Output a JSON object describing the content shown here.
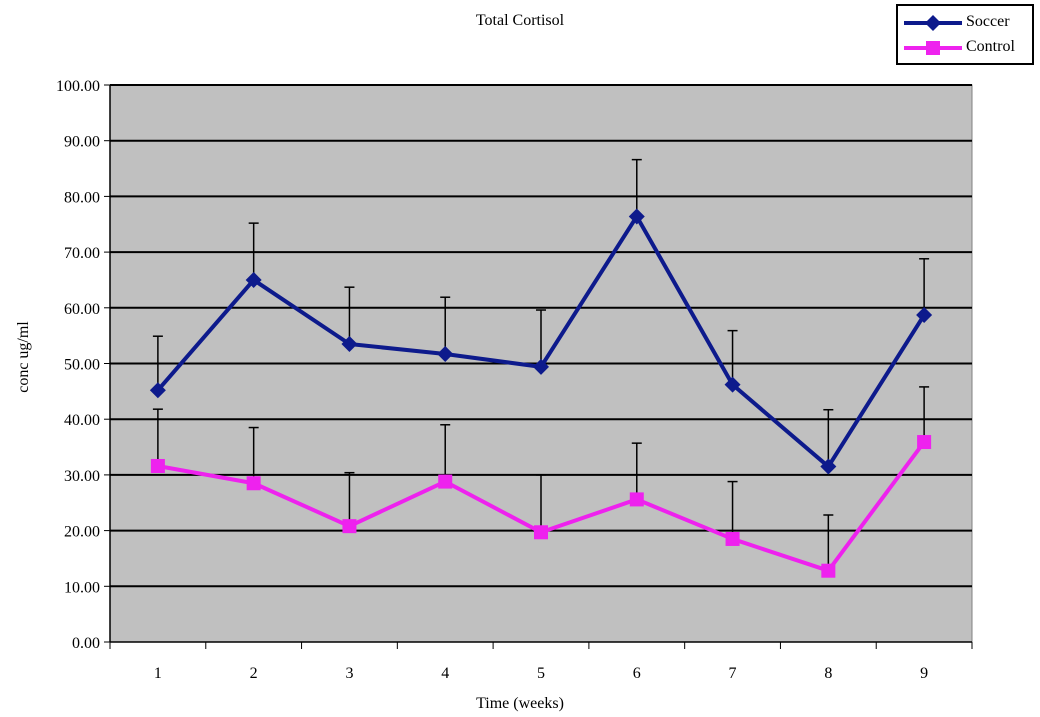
{
  "chart_data": {
    "type": "line",
    "title": "Total Cortisol",
    "xlabel": "Time (weeks)",
    "ylabel": "conc ug/ml",
    "categories": [
      "1",
      "2",
      "3",
      "4",
      "5",
      "6",
      "7",
      "8",
      "9"
    ],
    "ylim": [
      0,
      100
    ],
    "yticks": [
      "0.00",
      "10.00",
      "20.00",
      "30.00",
      "40.00",
      "50.00",
      "60.00",
      "70.00",
      "80.00",
      "90.00",
      "100.00"
    ],
    "grid": true,
    "legend_position": "top-right",
    "series": [
      {
        "name": "Soccer",
        "marker": "diamond",
        "color": "#0d1a8c",
        "values": [
          45.2,
          65.0,
          53.5,
          51.7,
          49.4,
          76.4,
          46.2,
          31.5,
          58.7
        ],
        "error_upper": [
          54.9,
          75.2,
          63.7,
          61.9,
          59.6,
          86.6,
          55.9,
          41.7,
          68.8
        ]
      },
      {
        "name": "Control",
        "marker": "square",
        "color": "#ee22ee",
        "values": [
          31.6,
          28.5,
          20.8,
          28.8,
          19.7,
          25.6,
          18.5,
          12.8,
          35.9
        ],
        "error_upper": [
          41.8,
          38.5,
          30.4,
          39.0,
          30.0,
          35.7,
          28.8,
          22.8,
          45.8
        ]
      }
    ],
    "plot_background": "#c0c0c0"
  }
}
